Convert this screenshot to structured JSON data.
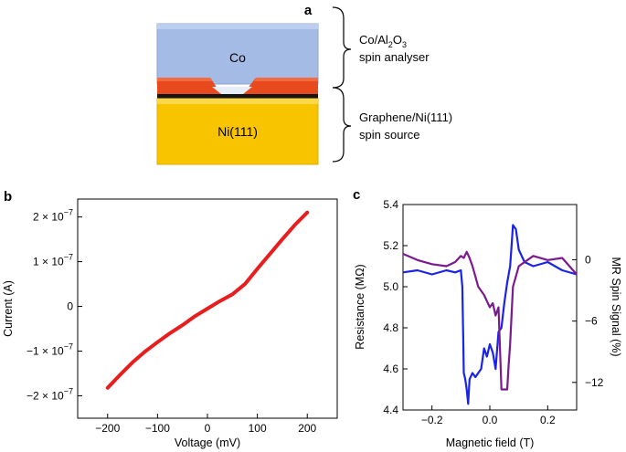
{
  "panel_a": {
    "letter": "a",
    "layer_top": "Co",
    "layer_bottom": "Ni(111)",
    "annotation_top_line1_main": "Co/Al",
    "annotation_top_line1_sub1": "2",
    "annotation_top_line1_mid": "O",
    "annotation_top_line1_sub2": "3",
    "annotation_top_line2": "spin analyser",
    "annotation_bottom_line1": "Graphene/Ni(111)",
    "annotation_bottom_line2": "spin source",
    "colors": {
      "co": "#9fb6e2",
      "oxide": "#e8481c",
      "graphene": "#111111",
      "ni": "#f7c200"
    }
  },
  "chart_data": [
    {
      "panel": "b",
      "type": "line",
      "xlabel": "Voltage (mV)",
      "ylabel": "Current (A)",
      "xlim": [
        -260,
        260
      ],
      "ylim": [
        -2.5e-07,
        2.4e-07
      ],
      "xticks": [
        "−200",
        "−100",
        "0",
        "100",
        "200"
      ],
      "xtick_values": [
        -200,
        -100,
        0,
        100,
        200
      ],
      "ytick_values": [
        -2e-07,
        -1e-07,
        0,
        1e-07,
        2e-07
      ],
      "ytick_labels": [
        {
          "main": "−2 × 10",
          "exp": "−7"
        },
        {
          "main": "−1 × 10",
          "exp": "−7"
        },
        {
          "main": "0",
          "exp": ""
        },
        {
          "main": "1 × 10",
          "exp": "−7"
        },
        {
          "main": "2 × 10",
          "exp": "−7"
        }
      ],
      "series": [
        {
          "name": "I-V",
          "color": "#e81e1e",
          "x": [
            -200,
            -175,
            -150,
            -125,
            -100,
            -75,
            -50,
            -25,
            0,
            25,
            50,
            75,
            100,
            125,
            150,
            175,
            200
          ],
          "y": [
            -1.82e-07,
            -1.53e-07,
            -1.25e-07,
            -1.01e-07,
            -8e-08,
            -6e-08,
            -4.2e-08,
            -2.2e-08,
            -5e-09,
            1.2e-08,
            2.7e-08,
            5e-08,
            8.4e-08,
            1.17e-07,
            1.5e-07,
            1.82e-07,
            2.1e-07
          ]
        }
      ]
    },
    {
      "panel": "c",
      "type": "line",
      "xlabel": "Magnetic field (T)",
      "ylabel": "Resistance (MΩ)",
      "ylabel_right": "MR Spin Signal (%)",
      "xlim": [
        -0.3,
        0.3
      ],
      "ylim": [
        4.4,
        5.4
      ],
      "ylim_right": [
        -14.7,
        5.4
      ],
      "xticks": [
        "−0.2",
        "0.0",
        "0.2"
      ],
      "xtick_values": [
        -0.2,
        0,
        0.2
      ],
      "yticks": [
        "4.4",
        "4.6",
        "4.8",
        "5.0",
        "5.2",
        "5.4"
      ],
      "ytick_values": [
        4.4,
        4.6,
        4.8,
        5.0,
        5.2,
        5.4
      ],
      "yticks_right": [
        "0",
        "−6",
        "−12"
      ],
      "ytick_right_values": [
        0,
        -6,
        -12
      ],
      "series": [
        {
          "name": "blue sweep",
          "color": "#1a23e8",
          "x": [
            -0.3,
            -0.25,
            -0.2,
            -0.15,
            -0.12,
            -0.1,
            -0.095,
            -0.092,
            -0.09,
            -0.085,
            -0.08,
            -0.075,
            -0.07,
            -0.06,
            -0.05,
            -0.04,
            -0.03,
            -0.02,
            -0.01,
            0.0,
            0.01,
            0.02,
            0.03,
            0.04,
            0.05,
            0.06,
            0.07,
            0.075,
            0.08,
            0.09,
            0.1,
            0.12,
            0.15,
            0.2,
            0.25,
            0.3
          ],
          "y": [
            5.07,
            5.08,
            5.06,
            5.08,
            5.07,
            5.08,
            5.0,
            4.75,
            4.58,
            4.55,
            4.5,
            4.43,
            4.55,
            4.58,
            4.56,
            4.58,
            4.6,
            4.7,
            4.66,
            4.72,
            4.68,
            4.6,
            4.78,
            4.8,
            4.92,
            5.02,
            5.1,
            5.2,
            5.3,
            5.28,
            5.18,
            5.12,
            5.1,
            5.12,
            5.08,
            5.06
          ]
        },
        {
          "name": "purple sweep",
          "color": "#7b1a8f",
          "x": [
            -0.3,
            -0.25,
            -0.2,
            -0.15,
            -0.12,
            -0.1,
            -0.09,
            -0.08,
            -0.07,
            -0.06,
            -0.05,
            -0.04,
            -0.03,
            -0.02,
            -0.01,
            0.0,
            0.01,
            0.02,
            0.03,
            0.035,
            0.04,
            0.045,
            0.05,
            0.06,
            0.065,
            0.07,
            0.08,
            0.1,
            0.15,
            0.2,
            0.25,
            0.3
          ],
          "y": [
            5.16,
            5.13,
            5.11,
            5.1,
            5.12,
            5.15,
            5.14,
            5.17,
            5.14,
            5.1,
            5.05,
            5.0,
            4.98,
            4.96,
            4.93,
            4.9,
            4.92,
            4.86,
            4.9,
            4.7,
            4.5,
            4.5,
            4.5,
            4.5,
            4.62,
            4.72,
            5.0,
            5.1,
            5.15,
            5.13,
            5.14,
            5.06
          ]
        }
      ]
    }
  ],
  "labels": {
    "panel_b_letter": "b",
    "panel_c_letter": "c"
  }
}
